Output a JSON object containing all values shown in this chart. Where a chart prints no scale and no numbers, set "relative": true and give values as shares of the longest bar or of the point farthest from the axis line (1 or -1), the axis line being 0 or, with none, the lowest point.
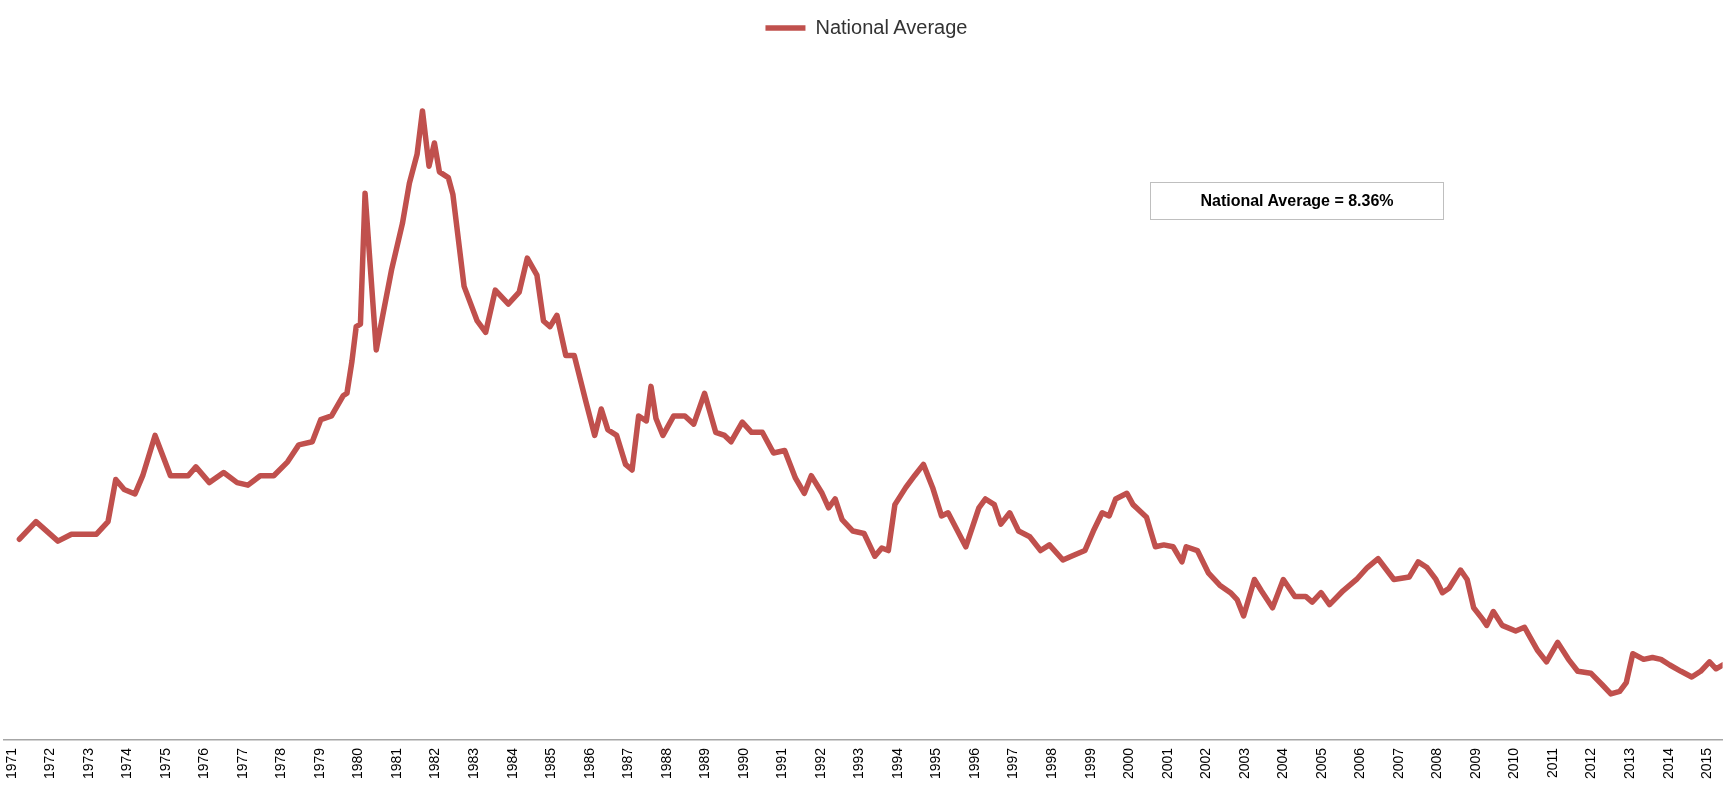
{
  "chart_data": {
    "type": "line",
    "relative": true,
    "legend": "top",
    "grid": false,
    "marker": "none",
    "line_style": "solid",
    "annotations": [
      "National Average  = 8.36%"
    ],
    "xlim": [
      1970.8,
      2015.4
    ],
    "xticks": [
      1971,
      1972,
      1973,
      1974,
      1975,
      1976,
      1977,
      1978,
      1979,
      1980,
      1981,
      1982,
      1983,
      1984,
      1985,
      1986,
      1987,
      1988,
      1989,
      1990,
      1991,
      1992,
      1993,
      1994,
      1995,
      1996,
      1997,
      1998,
      1999,
      2000,
      2001,
      2002,
      2003,
      2004,
      2005,
      2006,
      2007,
      2008,
      2009,
      2010,
      2011,
      2012,
      2013,
      2014,
      2015
    ],
    "x": [
      1971.2,
      1971.63,
      1972.2,
      1972.55,
      1973.2,
      1973.5,
      1973.7,
      1973.92,
      1974.2,
      1974.4,
      1974.72,
      1975.12,
      1975.58,
      1975.78,
      1976.13,
      1976.5,
      1976.85,
      1977.13,
      1977.45,
      1977.8,
      1978.16,
      1978.45,
      1978.8,
      1979.02,
      1979.3,
      1979.6,
      1979.7,
      1979.83,
      1979.94,
      1980.05,
      1980.17,
      1980.46,
      1980.63,
      1980.86,
      1981.14,
      1981.32,
      1981.52,
      1981.66,
      1981.83,
      1981.97,
      1982.1,
      1982.33,
      1982.45,
      1982.74,
      1983.08,
      1983.3,
      1983.55,
      1983.89,
      1984.17,
      1984.38,
      1984.63,
      1984.8,
      1984.97,
      1985.15,
      1985.38,
      1985.6,
      1985.9,
      1986.13,
      1986.3,
      1986.47,
      1986.7,
      1986.93,
      1987.1,
      1987.27,
      1987.47,
      1987.59,
      1987.72,
      1987.9,
      1988.18,
      1988.47,
      1988.7,
      1988.98,
      1989.27,
      1989.5,
      1989.67,
      1989.96,
      1990.2,
      1990.48,
      1990.77,
      1991.06,
      1991.34,
      1991.57,
      1991.75,
      1992.03,
      1992.2,
      1992.37,
      1992.55,
      1992.83,
      1993.12,
      1993.4,
      1993.58,
      1993.75,
      1993.92,
      1994.2,
      1994.43,
      1994.66,
      1994.9,
      1995.13,
      1995.3,
      1995.76,
      1996.1,
      1996.27,
      1996.5,
      1996.67,
      1996.9,
      1997.13,
      1997.42,
      1997.7,
      1997.93,
      1998.28,
      1998.5,
      1998.85,
      1999.07,
      1999.3,
      1999.48,
      1999.65,
      1999.94,
      2000.1,
      2000.45,
      2000.68,
      2000.9,
      2001.14,
      2001.37,
      2001.48,
      2001.77,
      2002.06,
      2002.35,
      2002.63,
      2002.8,
      2002.97,
      2003.25,
      2003.43,
      2003.72,
      2004.0,
      2004.3,
      2004.58,
      2004.75,
      2004.98,
      2005.2,
      2005.55,
      2005.9,
      2006.18,
      2006.46,
      2006.87,
      2007.27,
      2007.5,
      2007.73,
      2007.96,
      2008.13,
      2008.3,
      2008.6,
      2008.77,
      2008.94,
      2009.17,
      2009.28,
      2009.45,
      2009.68,
      2010.03,
      2010.26,
      2010.6,
      2010.83,
      2011.12,
      2011.4,
      2011.64,
      2011.98,
      2012.27,
      2012.5,
      2012.73,
      2012.9,
      2013.07,
      2013.35,
      2013.58,
      2013.8,
      2014.03,
      2014.32,
      2014.6,
      2014.83,
      2015.06,
      2015.23,
      2015.4
    ],
    "series": [
      {
        "name": "National Average",
        "color": "#c0504d",
        "values": [
          0.319,
          0.347,
          0.316,
          0.327,
          0.327,
          0.347,
          0.414,
          0.398,
          0.391,
          0.42,
          0.484,
          0.42,
          0.42,
          0.434,
          0.409,
          0.425,
          0.409,
          0.405,
          0.42,
          0.42,
          0.442,
          0.469,
          0.474,
          0.509,
          0.515,
          0.547,
          0.551,
          0.602,
          0.657,
          0.661,
          0.869,
          0.62,
          0.675,
          0.748,
          0.821,
          0.885,
          0.931,
          1.0,
          0.912,
          0.949,
          0.903,
          0.894,
          0.867,
          0.721,
          0.666,
          0.648,
          0.715,
          0.693,
          0.712,
          0.766,
          0.739,
          0.666,
          0.657,
          0.675,
          0.611,
          0.611,
          0.538,
          0.484,
          0.526,
          0.493,
          0.484,
          0.438,
          0.429,
          0.515,
          0.507,
          0.562,
          0.511,
          0.484,
          0.515,
          0.515,
          0.502,
          0.551,
          0.489,
          0.484,
          0.474,
          0.505,
          0.489,
          0.489,
          0.456,
          0.46,
          0.416,
          0.392,
          0.42,
          0.392,
          0.369,
          0.383,
          0.35,
          0.332,
          0.328,
          0.292,
          0.305,
          0.301,
          0.374,
          0.401,
          0.42,
          0.438,
          0.401,
          0.356,
          0.361,
          0.307,
          0.369,
          0.383,
          0.374,
          0.343,
          0.361,
          0.332,
          0.323,
          0.301,
          0.31,
          0.286,
          0.292,
          0.301,
          0.332,
          0.361,
          0.356,
          0.383,
          0.392,
          0.374,
          0.354,
          0.307,
          0.31,
          0.307,
          0.283,
          0.307,
          0.301,
          0.265,
          0.246,
          0.234,
          0.223,
          0.197,
          0.255,
          0.237,
          0.21,
          0.255,
          0.228,
          0.228,
          0.219,
          0.234,
          0.215,
          0.237,
          0.255,
          0.274,
          0.288,
          0.255,
          0.259,
          0.283,
          0.274,
          0.255,
          0.234,
          0.241,
          0.27,
          0.255,
          0.21,
          0.192,
          0.182,
          0.204,
          0.182,
          0.173,
          0.179,
          0.142,
          0.124,
          0.155,
          0.128,
          0.109,
          0.106,
          0.088,
          0.073,
          0.077,
          0.091,
          0.137,
          0.128,
          0.131,
          0.128,
          0.119,
          0.109,
          0.1,
          0.109,
          0.124,
          0.113,
          0.119
        ]
      }
    ]
  }
}
